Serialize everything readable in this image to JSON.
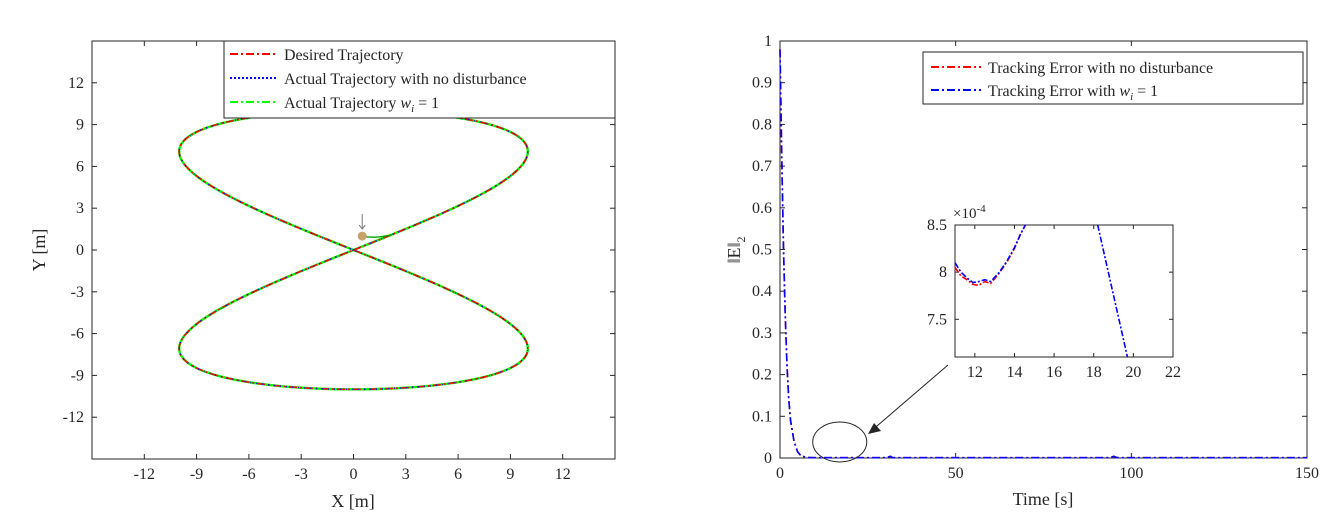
{
  "chart_data": [
    {
      "type": "line",
      "xlabel": "X [m]",
      "ylabel": "Y [m]",
      "xlim": [
        -15,
        15
      ],
      "ylim": [
        -15,
        15
      ],
      "xticks": [
        -12,
        -9,
        -6,
        -3,
        0,
        3,
        6,
        9,
        12
      ],
      "yticks": [
        -12,
        -9,
        -6,
        -3,
        0,
        3,
        6,
        9,
        12
      ],
      "grid": false,
      "legend_position": "top-right",
      "curve_description": "figure-eight x = 10*sin(t)*cos(t) scaled, y = 10*sin(t)",
      "series": [
        {
          "name": "Desired Trajectory",
          "color": "#ff0000",
          "style": "dashdot",
          "x": [
            0,
            3.1,
            5.9,
            8.1,
            9.5,
            10,
            9.5,
            8.1,
            5.9,
            3.1,
            0,
            -3.1,
            -5.9,
            -8.1,
            -9.5,
            -10,
            -9.5,
            -8.1,
            -5.9,
            -3.1,
            0
          ],
          "y": [
            0,
            3.1,
            5.9,
            8.1,
            9.5,
            10,
            9.5,
            8.1,
            5.9,
            3.1,
            0,
            -3.1,
            -5.9,
            -8.1,
            -9.5,
            -10,
            -9.5,
            -8.1,
            -5.9,
            -3.1,
            0
          ]
        },
        {
          "name": "Actual Trajectory with no disturbance",
          "color": "#0000ff",
          "style": "dotted"
        },
        {
          "name": "Actual Trajectory w_i = 1",
          "legend_text": "Actual Trajectory ",
          "legend_math": "w",
          "legend_math_sub": "i",
          "legend_math_tail": " = 1",
          "color": "#00ff00",
          "style": "dashdot"
        }
      ],
      "start_marker": {
        "x": 0.5,
        "y": 1.0,
        "color": "#c8a26b"
      }
    },
    {
      "type": "line",
      "xlabel": "Time [s]",
      "ylabel": "||E||₂",
      "ylabel_main": "‖E‖",
      "ylabel_sub": "2",
      "xlim": [
        0,
        150
      ],
      "ylim": [
        0,
        1
      ],
      "xticks": [
        0,
        50,
        100,
        150
      ],
      "yticks": [
        0,
        0.1,
        0.2,
        0.3,
        0.4,
        0.5,
        0.6,
        0.7,
        0.8,
        0.9,
        1
      ],
      "ytick_labels": [
        "0",
        "0.1",
        "0.2",
        "0.3",
        "0.4",
        "0.5",
        "0.6",
        "0.7",
        "0.8",
        "0.9",
        "1"
      ],
      "grid": false,
      "legend_position": "top-right",
      "series": [
        {
          "name": "Tracking Error with no disturbance",
          "color": "#ff0000",
          "style": "dashdot",
          "x": [
            0,
            0.5,
            1,
            1.5,
            2,
            2.5,
            3,
            4,
            5,
            6,
            8,
            10,
            30,
            31.5,
            32,
            50,
            94,
            95,
            96,
            150
          ],
          "y": [
            0.98,
            0.72,
            0.5,
            0.34,
            0.22,
            0.14,
            0.09,
            0.04,
            0.015,
            0.005,
            0.001,
            0.0008,
            0.0008,
            0.004,
            0.0008,
            0.0008,
            0.0008,
            0.004,
            0.0008,
            0.0008
          ]
        },
        {
          "name": "Tracking Error with w_i = 1",
          "legend_text": "Tracking Error with ",
          "legend_math": "w",
          "legend_math_sub": "i",
          "legend_math_tail": " = 1",
          "color": "#0000ff",
          "style": "dashdot",
          "x": [
            0,
            0.5,
            1,
            1.5,
            2,
            2.5,
            3,
            4,
            5,
            6,
            8,
            10,
            30,
            31.5,
            32,
            50,
            94,
            95,
            96,
            150
          ],
          "y": [
            0.98,
            0.72,
            0.5,
            0.34,
            0.22,
            0.14,
            0.09,
            0.04,
            0.015,
            0.005,
            0.001,
            0.0008,
            0.0008,
            0.004,
            0.0008,
            0.0008,
            0.0008,
            0.004,
            0.0008,
            0.0008
          ]
        }
      ],
      "highlight_region": {
        "x": [
          12,
          22
        ],
        "y": [
          0,
          0.0009
        ]
      },
      "inset": {
        "xlim": [
          11,
          22
        ],
        "ylim": [
          7.1,
          8.5
        ],
        "xticks": [
          12,
          14,
          16,
          18,
          20,
          22
        ],
        "yticks": [
          7.5,
          8,
          8.5
        ],
        "ytick_labels": [
          "7.5",
          "8",
          "8.5"
        ],
        "exponent_base": "×10",
        "exponent_power": "-4",
        "series": [
          {
            "name": "Tracking Error with no disturbance",
            "color": "#ff0000",
            "x": [
              11,
              11.3,
              11.6,
              11.9,
              12.2,
              12.5,
              12.8,
              13.2,
              13.6,
              14.0,
              14.3,
              14.55
            ],
            "y": [
              8.05,
              7.96,
              7.92,
              7.87,
              7.86,
              7.9,
              7.88,
              7.98,
              8.1,
              8.25,
              8.4,
              8.5
            ]
          },
          {
            "name": "Tracking Error with w_i = 1",
            "color": "#0000ff",
            "x": [
              11,
              11.3,
              11.6,
              11.9,
              12.2,
              12.5,
              12.8,
              13.2,
              13.6,
              14.0,
              14.3,
              14.55
            ],
            "y": [
              8.1,
              8.0,
              7.94,
              7.89,
              7.9,
              7.92,
              7.9,
              7.99,
              8.11,
              8.26,
              8.4,
              8.5
            ],
            "x2": [
              18.2,
              19.7
            ],
            "y2": [
              8.5,
              7.1
            ]
          }
        ]
      }
    }
  ]
}
